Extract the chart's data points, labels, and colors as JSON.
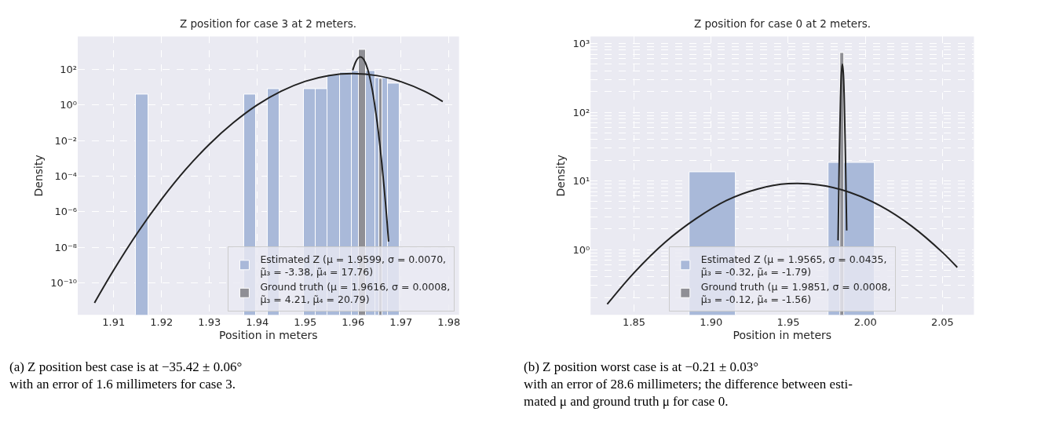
{
  "chart_data": [
    {
      "type": "histogram",
      "title": "Z position for case 3 at 2 meters.",
      "xlabel": "Position in meters",
      "ylabel": "Density",
      "log": "y",
      "grid": true,
      "legend": "bottom right",
      "xlim": [
        1.9025,
        1.9821
      ],
      "xticks": [
        1.91,
        1.92,
        1.93,
        1.94,
        1.95,
        1.96,
        1.97,
        1.98
      ],
      "ylim": [
        1.6e-12,
        7000
      ],
      "yticks": [
        {
          "value": 1e-10,
          "label": "10⁻¹⁰"
        },
        {
          "value": 1e-08,
          "label": "10⁻⁸"
        },
        {
          "value": 1e-06,
          "label": "10⁻⁶"
        },
        {
          "value": 0.0001,
          "label": "10⁻⁴"
        },
        {
          "value": 0.01,
          "label": "10⁻²"
        },
        {
          "value": 1,
          "label": "10⁰"
        },
        {
          "value": 100,
          "label": "10²"
        }
      ],
      "series": [
        {
          "name": "Estimated Z (μ = 1.9599, σ = 0.0070,\nμ̃₃ = -3.38, μ̃₄ = 17.76)",
          "color": "#a9b9d9",
          "bins": [
            1.9147,
            1.9172,
            1.9197,
            1.9222,
            1.9247,
            1.9272,
            1.9297,
            1.9322,
            1.9347,
            1.9372,
            1.9397,
            1.9422,
            1.9447,
            1.9472,
            1.9497,
            1.9522,
            1.9547,
            1.9572,
            1.9597,
            1.9622,
            1.9647,
            1.9672,
            1.9697
          ],
          "values": [
            4,
            null,
            null,
            null,
            null,
            null,
            null,
            null,
            null,
            4,
            null,
            8,
            null,
            null,
            8,
            8,
            48,
            68,
            84,
            84,
            32,
            16
          ]
        },
        {
          "name": "Ground truth (μ = 1.9616, σ = 0.0008,\nμ̃₃ = 4.21, μ̃₄ = 20.79)",
          "color": "#8f8f95",
          "bins": [
            1.9612,
            1.9626,
            1.9655,
            1.9661
          ],
          "values": [
            1260,
            null,
            30
          ]
        },
        {
          "type": "line",
          "color": "#222222",
          "x": [
            1.906,
            1.91,
            1.915,
            1.92,
            1.925,
            1.93,
            1.935,
            1.94,
            1.945,
            1.95,
            1.955,
            1.96,
            1.965,
            1.97,
            1.975,
            1.9787
          ],
          "values": [
            7.6e-12,
            5.2e-10,
            6.6e-08,
            5e-06,
            0.00023,
            0.0062,
            0.1,
            1.0,
            5.9,
            21,
            45,
            57,
            44,
            20,
            5.6,
            1.55
          ]
        },
        {
          "type": "line",
          "color": "#222222",
          "x": [
            1.9599,
            1.9605,
            1.961,
            1.9615,
            1.962,
            1.9625,
            1.963,
            1.9635,
            1.964,
            1.9645,
            1.965,
            1.9655,
            1.966,
            1.9665,
            1.967,
            1.9674
          ],
          "values": [
            87,
            250,
            420,
            500,
            420,
            250,
            107,
            32,
            6.9,
            1.0,
            0.11,
            0.0085,
            0.00047,
            1.8e-05,
            4.9e-07,
            2.1e-08
          ]
        }
      ],
      "annotations": [
        "(a) Z position best case is at −35.42 ± 0.06°\nwith an error of 1.6 millimeters for case 3."
      ]
    },
    {
      "type": "histogram",
      "title": "Z position for case 0 at 2 meters.",
      "xlabel": "Position in meters",
      "ylabel": "Density",
      "log": "y",
      "grid": true,
      "legend": "bottom",
      "xlim": [
        1.8218,
        2.0704
      ],
      "xticks": [
        1.85,
        {
          "value": 1.9,
          "label": "1.90"
        },
        1.95,
        {
          "value": 2.0,
          "label": "2.00"
        },
        2.05
      ],
      "ylim": [
        0.112,
        1270
      ],
      "yticks": [
        {
          "value": 0.2,
          "label": null
        },
        {
          "value": 0.3,
          "label": null
        },
        {
          "value": 0.4,
          "label": null
        },
        {
          "value": 0.5,
          "label": null
        },
        {
          "value": 0.6,
          "label": null
        },
        {
          "value": 0.7,
          "label": null
        },
        {
          "value": 0.8,
          "label": null
        },
        {
          "value": 0.9,
          "label": null
        },
        {
          "value": 1,
          "label": "10⁰"
        },
        {
          "value": 2,
          "label": null
        },
        {
          "value": 3,
          "label": null
        },
        {
          "value": 4,
          "label": null
        },
        {
          "value": 5,
          "label": null
        },
        {
          "value": 6,
          "label": null
        },
        {
          "value": 7,
          "label": null
        },
        {
          "value": 8,
          "label": null
        },
        {
          "value": 9,
          "label": null
        },
        {
          "value": 10,
          "label": "10¹"
        },
        {
          "value": 20,
          "label": null
        },
        {
          "value": 30,
          "label": null
        },
        {
          "value": 40,
          "label": null
        },
        {
          "value": 50,
          "label": null
        },
        {
          "value": 60,
          "label": null
        },
        {
          "value": 70,
          "label": null
        },
        {
          "value": 80,
          "label": null
        },
        {
          "value": 90,
          "label": null
        },
        {
          "value": 100,
          "label": "10²"
        },
        {
          "value": 200,
          "label": null
        },
        {
          "value": 300,
          "label": null
        },
        {
          "value": 400,
          "label": null
        },
        {
          "value": 500,
          "label": null
        },
        {
          "value": 600,
          "label": null
        },
        {
          "value": 700,
          "label": null
        },
        {
          "value": 800,
          "label": null
        },
        {
          "value": 900,
          "label": null
        },
        {
          "value": 1000,
          "label": "10³"
        }
      ],
      "series": [
        {
          "name": "Estimated Z (μ = 1.9565, σ = 0.0435,\nμ̃₃ = -0.32, μ̃₄ = -1.79)",
          "color": "#a9b9d9",
          "bins": [
            1.8862,
            1.9162,
            1.9462,
            1.9762,
            2.0062
          ],
          "values": [
            13.5,
            null,
            null,
            18.3
          ]
        },
        {
          "name": "Ground truth (μ = 1.9851, σ = 0.0008,\nμ̃₃ = -0.12, μ̃₄ = -1.56)",
          "color": "#8f8f95",
          "bins": [
            1.9838,
            1.9864
          ],
          "values": [
            740
          ]
        },
        {
          "type": "line",
          "color": "#222222",
          "x": [
            1.8326,
            1.85,
            1.87,
            1.89,
            1.91,
            1.93,
            1.95,
            1.97,
            1.99,
            2.01,
            2.03,
            2.05,
            2.0596
          ],
          "values": [
            0.16,
            0.46,
            1.27,
            2.8,
            5.2,
            7.6,
            9.1,
            8.7,
            6.8,
            4.3,
            2.2,
            0.91,
            0.55
          ]
        },
        {
          "type": "line",
          "color": "#222222",
          "x": [
            1.9823,
            1.9831,
            1.9839,
            1.9845,
            1.9851,
            1.9857,
            1.9863,
            1.9871,
            1.9879
          ],
          "values": [
            1.36,
            22,
            160,
            380,
            500,
            380,
            160,
            22,
            1.9
          ]
        }
      ],
      "annotations": [
        "(b) Z position worst case is at −0.21 ± 0.03°\nwith an error of 28.6 millimeters; the difference between esti-\nmated μ and ground truth μ for case 0."
      ]
    }
  ]
}
